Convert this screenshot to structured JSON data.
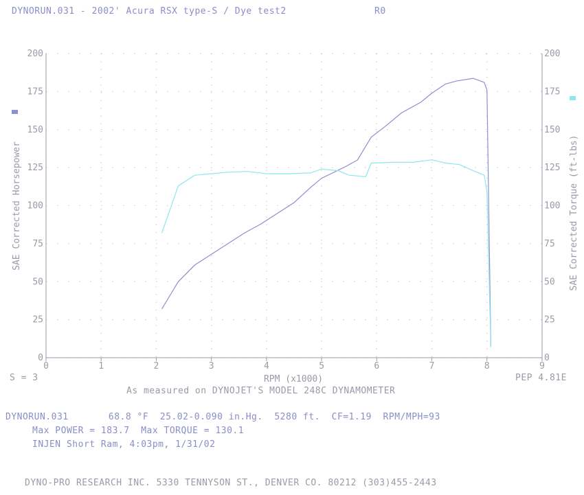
{
  "header": {
    "title": "DYNORUN.031 - 2002' Acura RSX type-S / Dye test2",
    "code": "R0"
  },
  "labels": {
    "smoothing": "S = 3",
    "pep": "PEP 4.81E",
    "measured": "As measured on DYNOJET'S MODEL 248C DYNAMOMETER"
  },
  "info": {
    "line1": "DYNORUN.031       68.8 °F  25.02-0.090 in.Hg.  5280 ft.  CF=1.19  RPM/MPH=93",
    "line2": "Max POWER = 183.7  Max TORQUE = 130.1",
    "line3": "INJEN Short Ram, 4:03pm, 1/31/02"
  },
  "footer": "DYNO-PRO RESEARCH INC. 5330 TENNYSON ST., DENVER CO. 80212 (303)455-2443",
  "colors": {
    "power": "#8c8fd0",
    "torque": "#8ee6f0",
    "axis": "#9a9aa8"
  },
  "chart_data": {
    "type": "line",
    "xlabel": "RPM (x1000)",
    "ylabel": "SAE Corrected Horsepower",
    "y2label": "SAE Corrected Torque (ft-lbs)",
    "xlim": [
      0,
      9
    ],
    "ylim": [
      0,
      200
    ],
    "y2lim": [
      0,
      200
    ],
    "xticks": [
      "0",
      "1",
      "2",
      "3",
      "4",
      "5",
      "6",
      "7",
      "8",
      "9"
    ],
    "yticks": [
      "0",
      "25",
      "50",
      "75",
      "100",
      "125",
      "150",
      "175",
      "200"
    ],
    "grid": true,
    "series": [
      {
        "key": "power",
        "x": [
          2.1,
          2.4,
          2.7,
          3.0,
          3.3,
          3.6,
          3.9,
          4.2,
          4.5,
          4.8,
          5.0,
          5.4,
          5.65,
          5.9,
          6.15,
          6.45,
          6.8,
          7.0,
          7.25,
          7.45,
          7.75,
          7.95,
          8.0,
          8.07
        ],
        "y": [
          32,
          50,
          61,
          68,
          75,
          82,
          88,
          95,
          102,
          112,
          118,
          125,
          130,
          145,
          152,
          161,
          168,
          174,
          180,
          182,
          183.7,
          181,
          176,
          7
        ]
      },
      {
        "key": "torque",
        "x": [
          2.1,
          2.4,
          2.7,
          3.0,
          3.3,
          3.65,
          4.0,
          4.4,
          4.8,
          5.0,
          5.3,
          5.5,
          5.8,
          5.9,
          6.3,
          6.65,
          7.0,
          7.25,
          7.5,
          7.75,
          7.95,
          8.0,
          8.07
        ],
        "y": [
          82,
          113,
          120,
          121,
          122,
          122.5,
          121,
          121,
          121.5,
          124,
          123,
          120,
          119,
          128,
          128.5,
          128.5,
          130.1,
          128,
          127,
          123,
          120,
          109,
          7
        ]
      }
    ]
  }
}
